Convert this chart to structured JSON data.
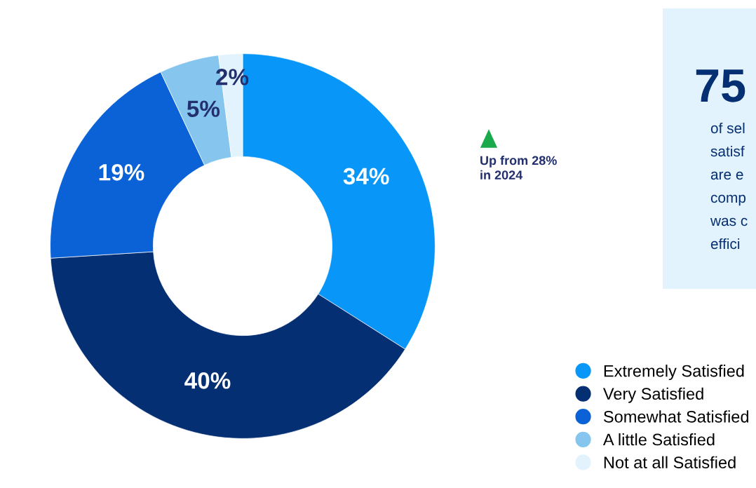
{
  "chart_data": {
    "type": "donut",
    "categories": [
      "Extremely Satisfied",
      "Very Satisfied",
      "Somewhat Satisfied",
      "A little Satisfied",
      "Not at all Satisfied"
    ],
    "values": [
      34,
      40,
      19,
      5,
      2
    ],
    "colors": [
      "#0897f9",
      "#052f73",
      "#0a62d6",
      "#86c6ee",
      "#e2f3fd"
    ],
    "value_labels": [
      "34%",
      "40%",
      "19%",
      "5%",
      "2%"
    ],
    "legend": "right",
    "annotations": [
      "Up from 28%\nin 2024",
      "75",
      "of sel",
      "satisf",
      "are e",
      "comp",
      "was c",
      "effici"
    ]
  }
}
